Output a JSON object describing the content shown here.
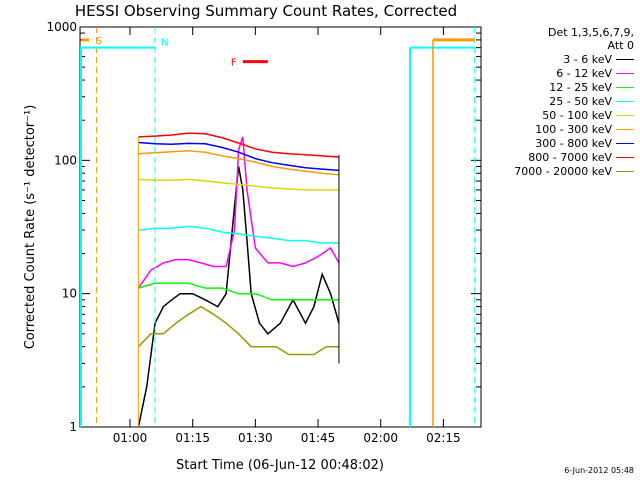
{
  "chart_data": {
    "type": "line",
    "title": "HESSI Observing Summary Count Rates, Corrected",
    "xlabel": "Start Time (06-Jun-12 00:48:02)",
    "ylabel": "Corrected Count Rate (s⁻¹ detector⁻¹)",
    "yscale": "log",
    "ylim": [
      1,
      1000
    ],
    "xlim": [
      "00:48:02",
      "02:24:00"
    ],
    "x_ticks": [
      "01:00",
      "01:15",
      "01:30",
      "01:45",
      "02:00",
      "02:15"
    ],
    "y_ticks": [
      "1",
      "10",
      "100",
      "1000"
    ],
    "legend_header": [
      "Det 1,3,5,6,7,9,",
      "Att 0"
    ],
    "legend_position": "top-right outside",
    "series": [
      {
        "name": "3 - 6 keV",
        "color": "#000000",
        "x": [
          "01:02",
          "01:04",
          "01:06",
          "01:08",
          "01:10",
          "01:12",
          "01:15",
          "01:18",
          "01:21",
          "01:23",
          "01:25",
          "01:26",
          "01:27",
          "01:28",
          "01:29",
          "01:31",
          "01:33",
          "01:36",
          "01:39",
          "01:42",
          "01:44",
          "01:46",
          "01:48",
          "01:50"
        ],
        "values": [
          1,
          2,
          6,
          8,
          9,
          10,
          10,
          9,
          8,
          10,
          45,
          90,
          60,
          25,
          10,
          6,
          5,
          6,
          9,
          6,
          8,
          14,
          10,
          6
        ]
      },
      {
        "name": "6 - 12 keV",
        "color": "#ff00ff",
        "x": [
          "01:02",
          "01:05",
          "01:08",
          "01:11",
          "01:14",
          "01:17",
          "01:20",
          "01:23",
          "01:25",
          "01:26",
          "01:27",
          "01:28",
          "01:30",
          "01:33",
          "01:36",
          "01:39",
          "01:42",
          "01:45",
          "01:48",
          "01:50"
        ],
        "values": [
          11,
          15,
          17,
          18,
          18,
          17,
          16,
          16,
          30,
          120,
          150,
          60,
          22,
          17,
          17,
          16,
          17,
          19,
          22,
          17
        ]
      },
      {
        "name": "12 - 25 keV",
        "color": "#00ff00",
        "x": [
          "01:02",
          "01:06",
          "01:10",
          "01:14",
          "01:18",
          "01:22",
          "01:26",
          "01:30",
          "01:34",
          "01:38",
          "01:42",
          "01:46",
          "01:50"
        ],
        "values": [
          11,
          12,
          12,
          12,
          11,
          11,
          10,
          10,
          9,
          9,
          9,
          9,
          9
        ]
      },
      {
        "name": "25 - 50 keV",
        "color": "#00ffff",
        "x": [
          "01:02",
          "01:06",
          "01:10",
          "01:14",
          "01:18",
          "01:22",
          "01:26",
          "01:30",
          "01:34",
          "01:38",
          "01:42",
          "01:46",
          "01:50"
        ],
        "values": [
          30,
          31,
          31,
          32,
          31,
          29,
          28,
          27,
          26,
          25,
          25,
          24,
          24
        ]
      },
      {
        "name": "50 - 100 keV",
        "color": "#d8d800",
        "x": [
          "01:02",
          "01:06",
          "01:10",
          "01:14",
          "01:18",
          "01:22",
          "01:26",
          "01:30",
          "01:34",
          "01:38",
          "01:42",
          "01:46",
          "01:50"
        ],
        "values": [
          72,
          71,
          71,
          72,
          70,
          68,
          66,
          64,
          62,
          61,
          60,
          60,
          60
        ]
      },
      {
        "name": "100 - 300 keV",
        "color": "#ff9900",
        "x": [
          "01:02",
          "01:06",
          "01:10",
          "01:14",
          "01:18",
          "01:22",
          "01:26",
          "01:30",
          "01:34",
          "01:38",
          "01:42",
          "01:46",
          "01:50"
        ],
        "values": [
          112,
          114,
          116,
          118,
          115,
          108,
          103,
          97,
          90,
          86,
          83,
          80,
          78
        ]
      },
      {
        "name": "300 - 800 keV",
        "color": "#0000ff",
        "x": [
          "01:02",
          "01:06",
          "01:10",
          "01:14",
          "01:18",
          "01:22",
          "01:26",
          "01:30",
          "01:34",
          "01:38",
          "01:42",
          "01:46",
          "01:50"
        ],
        "values": [
          136,
          133,
          132,
          134,
          133,
          125,
          115,
          103,
          96,
          92,
          88,
          86,
          84
        ]
      },
      {
        "name": "800 - 7000 keV",
        "color": "#ff0000",
        "x": [
          "01:02",
          "01:06",
          "01:10",
          "01:14",
          "01:18",
          "01:22",
          "01:26",
          "01:30",
          "01:34",
          "01:38",
          "01:42",
          "01:46",
          "01:50"
        ],
        "values": [
          150,
          152,
          155,
          160,
          158,
          148,
          135,
          122,
          115,
          112,
          110,
          108,
          106
        ]
      },
      {
        "name": "7000 - 20000 keV",
        "color": "#999900",
        "x": [
          "01:02",
          "01:05",
          "01:08",
          "01:11",
          "01:14",
          "01:17",
          "01:20",
          "01:23",
          "01:26",
          "01:29",
          "01:32",
          "01:35",
          "01:38",
          "01:41",
          "01:44",
          "01:47",
          "01:50"
        ],
        "values": [
          4,
          5,
          5,
          6,
          7,
          8,
          7,
          6,
          5,
          4,
          4,
          4,
          3.5,
          3.5,
          3.5,
          4,
          4
        ]
      }
    ],
    "markers": [
      {
        "label": "S",
        "x": "00:50:10",
        "level": 800,
        "color": "#ff9900",
        "line_x": "00:52:00"
      },
      {
        "label": "N",
        "x_start": "00:48:02",
        "x_end": "01:06:00",
        "level": 700,
        "color": "#00ffff",
        "line_x": "01:06:00"
      },
      {
        "label": "F",
        "x_start": "01:27:00",
        "x_end": "01:33:00",
        "level": 550,
        "color": "#ff0000"
      }
    ],
    "night_segment": {
      "x_start": "02:07:00",
      "x_end": "02:22:30",
      "level": 700,
      "color": "#00ffff"
    },
    "saa_segment": {
      "x_start": "02:12:30",
      "x_end": "02:22:30",
      "level": 800,
      "color": "#ff9900"
    },
    "data_interval": [
      "01:02:00",
      "01:50:00"
    ]
  },
  "timestamp": "6-Jun-2012 05:48"
}
